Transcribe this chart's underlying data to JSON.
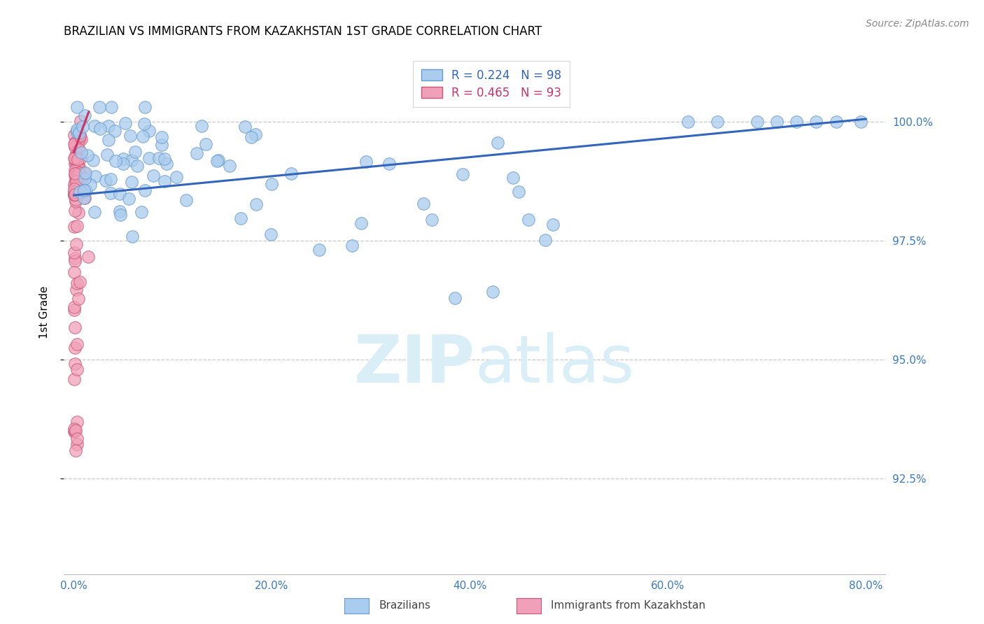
{
  "title": "BRAZILIAN VS IMMIGRANTS FROM KAZAKHSTAN 1ST GRADE CORRELATION CHART",
  "source": "Source: ZipAtlas.com",
  "ylabel": "1st Grade",
  "x_tick_labels": [
    "0.0%",
    "20.0%",
    "40.0%",
    "60.0%",
    "80.0%"
  ],
  "x_tick_values": [
    0.0,
    20.0,
    40.0,
    60.0,
    80.0
  ],
  "y_tick_labels": [
    "92.5%",
    "95.0%",
    "97.5%",
    "100.0%"
  ],
  "y_tick_values": [
    92.5,
    95.0,
    97.5,
    100.0
  ],
  "xlim": [
    -1.0,
    82.0
  ],
  "ylim": [
    90.5,
    101.5
  ],
  "legend_label_blue": "Brazilians",
  "legend_label_pink": "Immigrants from Kazakhstan",
  "legend_R_blue": "R = 0.224",
  "legend_N_blue": "N = 98",
  "legend_R_pink": "R = 0.465",
  "legend_N_pink": "N = 93",
  "blue_color": "#aaccee",
  "blue_edge_color": "#6699cc",
  "blue_trend_color": "#3366bb",
  "pink_color": "#f0a0b8",
  "pink_edge_color": "#cc5577",
  "pink_trend_color": "#cc3366",
  "watermark_color": "#daeef7",
  "blue_trend_x0": 0.0,
  "blue_trend_y0": 98.45,
  "blue_trend_x1": 80.0,
  "blue_trend_y1": 100.05,
  "pink_trend_x0": 0.0,
  "pink_trend_y0": 99.35,
  "pink_trend_x1": 1.5,
  "pink_trend_y1": 100.2
}
